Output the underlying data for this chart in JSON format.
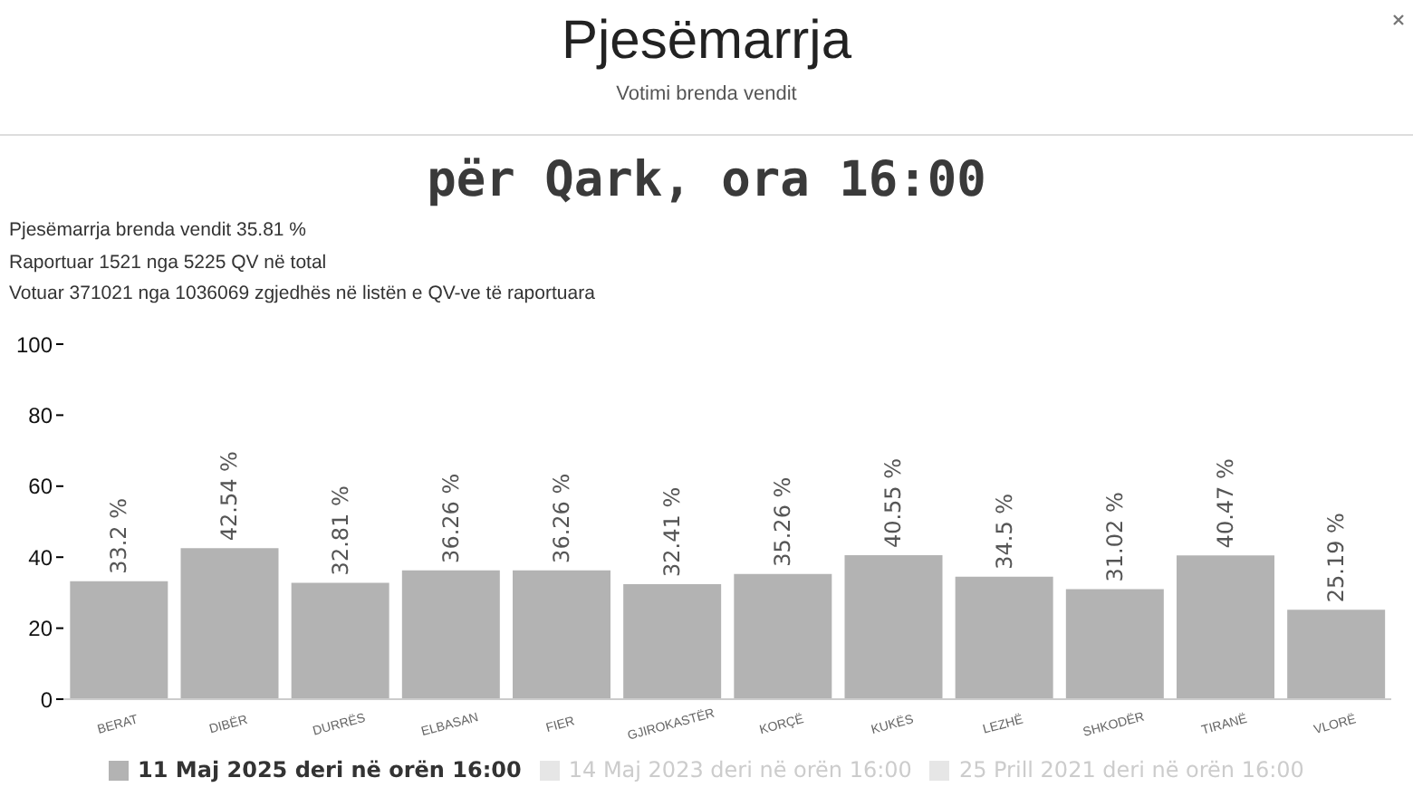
{
  "chart_data": {
    "type": "bar",
    "title": "Pjesëmarrja",
    "subtitle": "Votimi brenda vendit",
    "annotations": [
      "për Qark, ora 16:00",
      "Pjesëmarrja brenda vendit 35.81 %",
      "Raportuar 1521 nga 5225 QV në total",
      "Votuar 371021 nga 1036069 zgjedhës në listën e QV-ve të raportuara"
    ],
    "categories": [
      "BERAT",
      "DIBËR",
      "DURRËS",
      "ELBASAN",
      "FIER",
      "GJIROKASTËR",
      "KORÇË",
      "KUKËS",
      "LEZHË",
      "SHKODËR",
      "TIRANË",
      "VLORË"
    ],
    "series": [
      {
        "name": "11 Maj 2025 deri në orën 16:00",
        "color": "#b3b3b3",
        "values": [
          33.2,
          42.54,
          32.81,
          36.26,
          36.26,
          32.41,
          35.26,
          40.55,
          34.5,
          31.02,
          40.47,
          25.19
        ],
        "value_labels": [
          "33.2 %",
          "42.54 %",
          "32.81 %",
          "36.26 %",
          "36.26 %",
          "32.41 %",
          "35.26 %",
          "40.55 %",
          "34.5 %",
          "31.02 %",
          "40.47 %",
          "25.19 %"
        ]
      },
      {
        "name": "14 Maj 2023 deri në orën 16:00",
        "color": "#e6e6e6",
        "values": [
          null,
          null,
          null,
          null,
          null,
          null,
          null,
          null,
          null,
          null,
          null,
          null
        ]
      },
      {
        "name": "25 Prill 2021 deri në orën 16:00",
        "color": "#e6e6e6",
        "values": [
          null,
          null,
          null,
          null,
          null,
          null,
          null,
          null,
          null,
          null,
          null,
          null
        ]
      }
    ],
    "ylim": [
      0,
      100
    ],
    "yticks": [
      0,
      20,
      40,
      60,
      80,
      100
    ],
    "grid": false,
    "legend": "bottom"
  }
}
